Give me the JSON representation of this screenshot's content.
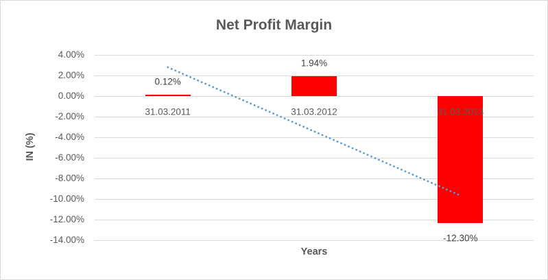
{
  "chart_data": {
    "type": "bar",
    "title": "Net Profit Margin",
    "xlabel": "Years",
    "ylabel": "IN (%)",
    "categories": [
      "31.03.2011",
      "31.03.2012",
      "31.03.2013"
    ],
    "values": [
      0.12,
      1.94,
      -12.3
    ],
    "data_labels": [
      "0.12%",
      "1.94%",
      "-12.30%"
    ],
    "ylim": [
      -14,
      4
    ],
    "ytick_step": 2,
    "ytick_labels": [
      "4.00%",
      "2.00%",
      "0.00%",
      "-2.00%",
      "-4.00%",
      "-6.00%",
      "-8.00%",
      "-10.00%",
      "-12.00%",
      "-14.00%"
    ],
    "grid": true,
    "legend": "none",
    "bar_color": "#ff0000",
    "trendline": {
      "type": "linear",
      "style": "dotted",
      "color": "#5b9bd5",
      "start_value": 2.8,
      "end_value": -9.6
    },
    "colors": {
      "grid": "#d9d9d9",
      "axis_text": "#595959",
      "data_label_text": "#404040",
      "frame_border": "#d9d9d9"
    }
  }
}
